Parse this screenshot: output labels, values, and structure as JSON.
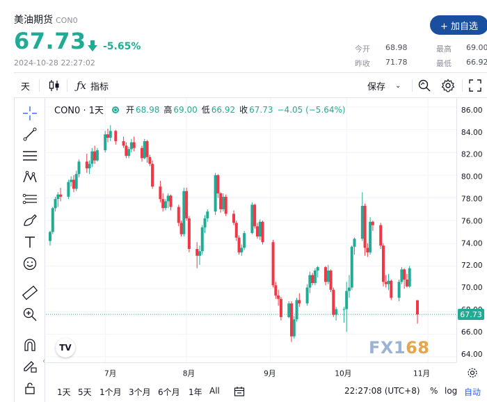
{
  "header": {
    "name": "美油期货",
    "code": "CON0",
    "price": "67.73",
    "change_pct": "-5.65%",
    "timestamp": "2024-10-28 22:27:02",
    "add_button": "+ 加自选",
    "stats": {
      "open_label": "今开",
      "open": "68.98",
      "high_label": "最高",
      "high": "69.00",
      "prev_label": "昨收",
      "prev": "71.78",
      "low_label": "最低",
      "low": "66.92"
    },
    "colors": {
      "up": "#22ab94",
      "down": "#f23645",
      "brand": "#1a4fa0"
    }
  },
  "toolbar": {
    "interval": "天",
    "indicators": "指标",
    "save": "保存"
  },
  "legend": {
    "symbol": "CON0 · 1天",
    "open_label": "开",
    "open": "68.98",
    "high_label": "高",
    "high": "69.00",
    "low_label": "低",
    "low": "66.92",
    "close_label": "收",
    "close": "67.73",
    "change": "−4.05 (−5.64%)"
  },
  "price_tag": "67.73",
  "watermark": {
    "left": "FX1",
    "right": "68"
  },
  "tv_logo": "TV",
  "bottom_bar": {
    "ranges": [
      "1天",
      "5天",
      "1个月",
      "3个月",
      "6个月",
      "1年",
      "All"
    ],
    "time": "22:27:08 (UTC+8)",
    "percent": "%",
    "log": "log",
    "auto": "自动"
  },
  "chart_data": {
    "type": "candlestick",
    "yticks": [
      "86.00",
      "84.00",
      "82.00",
      "80.00",
      "78.00",
      "76.00",
      "74.00",
      "72.00",
      "70.00",
      "68.00",
      "66.00",
      "64.00"
    ],
    "ylim": [
      64,
      86
    ],
    "xticks": [
      "7月",
      "8月",
      "9月",
      "10月",
      "11月"
    ],
    "xtick_dates": [
      "2024-07-01",
      "2024-08-01",
      "2024-09-02",
      "2024-10-01",
      "2024-11-01"
    ],
    "last_price": 67.73,
    "candles": [
      {
        "date": "2024-06-10",
        "o": 74.2,
        "h": 75.1,
        "l": 73.8,
        "c": 75.0
      },
      {
        "date": "2024-06-11",
        "o": 75.0,
        "h": 77.2,
        "l": 74.8,
        "c": 77.1
      },
      {
        "date": "2024-06-12",
        "o": 77.1,
        "h": 78.1,
        "l": 76.8,
        "c": 77.9
      },
      {
        "date": "2024-06-13",
        "o": 77.9,
        "h": 78.5,
        "l": 77.2,
        "c": 78.3
      },
      {
        "date": "2024-06-14",
        "o": 78.3,
        "h": 78.9,
        "l": 77.7,
        "c": 78.1
      },
      {
        "date": "2024-06-17",
        "o": 78.1,
        "h": 79.6,
        "l": 77.9,
        "c": 79.4
      },
      {
        "date": "2024-06-18",
        "o": 79.4,
        "h": 79.9,
        "l": 79.0,
        "c": 79.6
      },
      {
        "date": "2024-06-19",
        "o": 79.6,
        "h": 80.0,
        "l": 78.5,
        "c": 78.8
      },
      {
        "date": "2024-06-20",
        "o": 78.8,
        "h": 80.4,
        "l": 78.6,
        "c": 80.1
      },
      {
        "date": "2024-06-21",
        "o": 80.1,
        "h": 81.4,
        "l": 79.8,
        "c": 81.2
      },
      {
        "date": "2024-06-24",
        "o": 81.2,
        "h": 81.9,
        "l": 80.2,
        "c": 80.6
      },
      {
        "date": "2024-06-25",
        "o": 80.6,
        "h": 81.3,
        "l": 80.1,
        "c": 81.0
      },
      {
        "date": "2024-06-26",
        "o": 81.0,
        "h": 82.4,
        "l": 80.7,
        "c": 82.1
      },
      {
        "date": "2024-06-27",
        "o": 82.1,
        "h": 82.6,
        "l": 81.0,
        "c": 81.3
      },
      {
        "date": "2024-06-28",
        "o": 81.3,
        "h": 82.4,
        "l": 81.2,
        "c": 82.2
      },
      {
        "date": "2024-07-01",
        "o": 82.2,
        "h": 83.9,
        "l": 82.0,
        "c": 83.6
      },
      {
        "date": "2024-07-02",
        "o": 83.6,
        "h": 84.1,
        "l": 82.9,
        "c": 83.3
      },
      {
        "date": "2024-07-03",
        "o": 83.3,
        "h": 84.4,
        "l": 83.0,
        "c": 83.9
      },
      {
        "date": "2024-07-05",
        "o": 83.9,
        "h": 84.0,
        "l": 82.7,
        "c": 83.0
      },
      {
        "date": "2024-07-08",
        "o": 83.0,
        "h": 83.4,
        "l": 82.4,
        "c": 82.6
      },
      {
        "date": "2024-07-09",
        "o": 82.6,
        "h": 82.9,
        "l": 81.5,
        "c": 81.7
      },
      {
        "date": "2024-07-10",
        "o": 81.7,
        "h": 82.5,
        "l": 81.5,
        "c": 82.3
      },
      {
        "date": "2024-07-11",
        "o": 82.3,
        "h": 83.2,
        "l": 82.0,
        "c": 82.9
      },
      {
        "date": "2024-07-12",
        "o": 82.9,
        "h": 83.4,
        "l": 82.1,
        "c": 82.4
      },
      {
        "date": "2024-07-15",
        "o": 82.4,
        "h": 82.6,
        "l": 81.2,
        "c": 81.5
      },
      {
        "date": "2024-07-16",
        "o": 81.5,
        "h": 83.2,
        "l": 81.4,
        "c": 83.0
      },
      {
        "date": "2024-07-17",
        "o": 83.0,
        "h": 83.1,
        "l": 81.1,
        "c": 81.6
      },
      {
        "date": "2024-07-18",
        "o": 81.6,
        "h": 81.8,
        "l": 80.8,
        "c": 81.0
      },
      {
        "date": "2024-07-19",
        "o": 81.0,
        "h": 81.3,
        "l": 78.8,
        "c": 79.0
      },
      {
        "date": "2024-07-22",
        "o": 79.0,
        "h": 79.5,
        "l": 77.6,
        "c": 77.9
      },
      {
        "date": "2024-07-23",
        "o": 77.9,
        "h": 78.4,
        "l": 76.8,
        "c": 77.1
      },
      {
        "date": "2024-07-24",
        "o": 77.1,
        "h": 77.9,
        "l": 76.9,
        "c": 77.7
      },
      {
        "date": "2024-07-25",
        "o": 77.7,
        "h": 78.4,
        "l": 77.1,
        "c": 78.2
      },
      {
        "date": "2024-07-26",
        "o": 78.2,
        "h": 78.3,
        "l": 76.9,
        "c": 77.2
      },
      {
        "date": "2024-07-29",
        "o": 77.2,
        "h": 77.4,
        "l": 75.5,
        "c": 75.8
      },
      {
        "date": "2024-07-30",
        "o": 75.8,
        "h": 76.0,
        "l": 74.6,
        "c": 74.8
      },
      {
        "date": "2024-07-31",
        "o": 74.8,
        "h": 78.9,
        "l": 74.6,
        "c": 78.6
      },
      {
        "date": "2024-08-01",
        "o": 78.6,
        "h": 78.9,
        "l": 76.0,
        "c": 76.2
      },
      {
        "date": "2024-08-02",
        "o": 76.2,
        "h": 76.4,
        "l": 73.2,
        "c": 73.5
      },
      {
        "date": "2024-08-05",
        "o": 73.5,
        "h": 74.1,
        "l": 71.8,
        "c": 72.9
      },
      {
        "date": "2024-08-06",
        "o": 72.9,
        "h": 73.8,
        "l": 72.1,
        "c": 73.3
      },
      {
        "date": "2024-08-07",
        "o": 73.3,
        "h": 75.6,
        "l": 73.0,
        "c": 75.4
      },
      {
        "date": "2024-08-08",
        "o": 75.4,
        "h": 76.5,
        "l": 74.9,
        "c": 76.2
      },
      {
        "date": "2024-08-09",
        "o": 76.2,
        "h": 77.0,
        "l": 75.9,
        "c": 76.8
      },
      {
        "date": "2024-08-12",
        "o": 76.8,
        "h": 80.2,
        "l": 76.5,
        "c": 80.0
      },
      {
        "date": "2024-08-13",
        "o": 80.0,
        "h": 80.1,
        "l": 78.0,
        "c": 78.4
      },
      {
        "date": "2024-08-14",
        "o": 78.4,
        "h": 78.5,
        "l": 76.7,
        "c": 77.0
      },
      {
        "date": "2024-08-15",
        "o": 77.0,
        "h": 78.4,
        "l": 76.8,
        "c": 78.1
      },
      {
        "date": "2024-08-16",
        "o": 78.1,
        "h": 78.3,
        "l": 76.4,
        "c": 76.6
      },
      {
        "date": "2024-08-19",
        "o": 76.6,
        "h": 76.9,
        "l": 75.6,
        "c": 75.8
      },
      {
        "date": "2024-08-20",
        "o": 75.8,
        "h": 76.0,
        "l": 74.2,
        "c": 74.5
      },
      {
        "date": "2024-08-21",
        "o": 74.5,
        "h": 74.7,
        "l": 73.0,
        "c": 73.2
      },
      {
        "date": "2024-08-22",
        "o": 73.2,
        "h": 73.9,
        "l": 72.9,
        "c": 73.6
      },
      {
        "date": "2024-08-23",
        "o": 73.6,
        "h": 75.1,
        "l": 73.4,
        "c": 74.9
      },
      {
        "date": "2024-08-26",
        "o": 74.9,
        "h": 77.6,
        "l": 74.8,
        "c": 77.4
      },
      {
        "date": "2024-08-27",
        "o": 77.4,
        "h": 77.5,
        "l": 75.3,
        "c": 75.5
      },
      {
        "date": "2024-08-28",
        "o": 75.5,
        "h": 75.8,
        "l": 74.4,
        "c": 74.6
      },
      {
        "date": "2024-08-29",
        "o": 74.6,
        "h": 76.1,
        "l": 74.3,
        "c": 75.9
      },
      {
        "date": "2024-08-30",
        "o": 75.9,
        "h": 76.0,
        "l": 73.9,
        "c": 74.1
      },
      {
        "date": "2024-09-03",
        "o": 74.1,
        "h": 74.3,
        "l": 70.1,
        "c": 70.3
      },
      {
        "date": "2024-09-04",
        "o": 70.3,
        "h": 70.6,
        "l": 69.1,
        "c": 69.4
      },
      {
        "date": "2024-09-05",
        "o": 69.4,
        "h": 69.9,
        "l": 68.5,
        "c": 69.1
      },
      {
        "date": "2024-09-06",
        "o": 69.1,
        "h": 69.3,
        "l": 67.2,
        "c": 67.5
      },
      {
        "date": "2024-09-09",
        "o": 67.5,
        "h": 68.9,
        "l": 67.4,
        "c": 68.7
      },
      {
        "date": "2024-09-10",
        "o": 68.7,
        "h": 68.9,
        "l": 65.3,
        "c": 65.8
      },
      {
        "date": "2024-09-11",
        "o": 65.8,
        "h": 67.6,
        "l": 65.6,
        "c": 67.3
      },
      {
        "date": "2024-09-12",
        "o": 67.3,
        "h": 69.2,
        "l": 67.1,
        "c": 69.0
      },
      {
        "date": "2024-09-13",
        "o": 69.0,
        "h": 69.6,
        "l": 68.4,
        "c": 68.7
      },
      {
        "date": "2024-09-16",
        "o": 68.7,
        "h": 70.4,
        "l": 68.5,
        "c": 70.1
      },
      {
        "date": "2024-09-17",
        "o": 70.1,
        "h": 71.5,
        "l": 69.6,
        "c": 71.2
      },
      {
        "date": "2024-09-18",
        "o": 71.2,
        "h": 71.4,
        "l": 70.3,
        "c": 70.5
      },
      {
        "date": "2024-09-19",
        "o": 70.5,
        "h": 71.8,
        "l": 70.3,
        "c": 71.6
      },
      {
        "date": "2024-09-20",
        "o": 71.6,
        "h": 72.0,
        "l": 71.0,
        "c": 71.9
      },
      {
        "date": "2024-09-23",
        "o": 71.9,
        "h": 72.0,
        "l": 70.3,
        "c": 70.6
      },
      {
        "date": "2024-09-24",
        "o": 70.6,
        "h": 72.1,
        "l": 70.4,
        "c": 71.6
      },
      {
        "date": "2024-09-25",
        "o": 71.6,
        "h": 71.7,
        "l": 69.7,
        "c": 69.9
      },
      {
        "date": "2024-09-26",
        "o": 69.9,
        "h": 70.1,
        "l": 67.5,
        "c": 67.7
      },
      {
        "date": "2024-09-27",
        "o": 67.7,
        "h": 68.4,
        "l": 67.2,
        "c": 68.2
      },
      {
        "date": "2024-09-30",
        "o": 68.2,
        "h": 68.4,
        "l": 67.0,
        "c": 68.2
      },
      {
        "date": "2024-10-01",
        "o": 68.2,
        "h": 70.6,
        "l": 66.2,
        "c": 69.8
      },
      {
        "date": "2024-10-02",
        "o": 69.8,
        "h": 71.2,
        "l": 69.2,
        "c": 70.1
      },
      {
        "date": "2024-10-03",
        "o": 70.1,
        "h": 73.8,
        "l": 69.9,
        "c": 73.7
      },
      {
        "date": "2024-10-04",
        "o": 73.7,
        "h": 74.5,
        "l": 73.0,
        "c": 74.4
      },
      {
        "date": "2024-10-07",
        "o": 74.4,
        "h": 78.5,
        "l": 74.2,
        "c": 77.3
      },
      {
        "date": "2024-10-08",
        "o": 77.3,
        "h": 77.5,
        "l": 72.9,
        "c": 73.6
      },
      {
        "date": "2024-10-09",
        "o": 73.6,
        "h": 74.0,
        "l": 72.8,
        "c": 73.2
      },
      {
        "date": "2024-10-10",
        "o": 73.2,
        "h": 76.3,
        "l": 73.0,
        "c": 75.9
      },
      {
        "date": "2024-10-11",
        "o": 75.9,
        "h": 76.0,
        "l": 75.1,
        "c": 75.6
      },
      {
        "date": "2024-10-14",
        "o": 75.6,
        "h": 75.8,
        "l": 73.5,
        "c": 73.8
      },
      {
        "date": "2024-10-15",
        "o": 73.8,
        "h": 74.0,
        "l": 70.2,
        "c": 70.6
      },
      {
        "date": "2024-10-16",
        "o": 70.6,
        "h": 71.2,
        "l": 70.1,
        "c": 70.4
      },
      {
        "date": "2024-10-17",
        "o": 70.4,
        "h": 71.3,
        "l": 69.9,
        "c": 70.7
      },
      {
        "date": "2024-10-18",
        "o": 70.7,
        "h": 70.8,
        "l": 69.0,
        "c": 69.2
      },
      {
        "date": "2024-10-21",
        "o": 69.2,
        "h": 70.8,
        "l": 68.9,
        "c": 70.6
      },
      {
        "date": "2024-10-22",
        "o": 70.6,
        "h": 71.9,
        "l": 70.4,
        "c": 71.7
      },
      {
        "date": "2024-10-23",
        "o": 71.7,
        "h": 71.8,
        "l": 70.0,
        "c": 70.8
      },
      {
        "date": "2024-10-24",
        "o": 70.8,
        "h": 71.3,
        "l": 70.1,
        "c": 70.2
      },
      {
        "date": "2024-10-25",
        "o": 70.2,
        "h": 72.0,
        "l": 70.1,
        "c": 71.8
      },
      {
        "date": "2024-10-28",
        "o": 68.98,
        "h": 69.0,
        "l": 66.92,
        "c": 67.73
      }
    ]
  }
}
